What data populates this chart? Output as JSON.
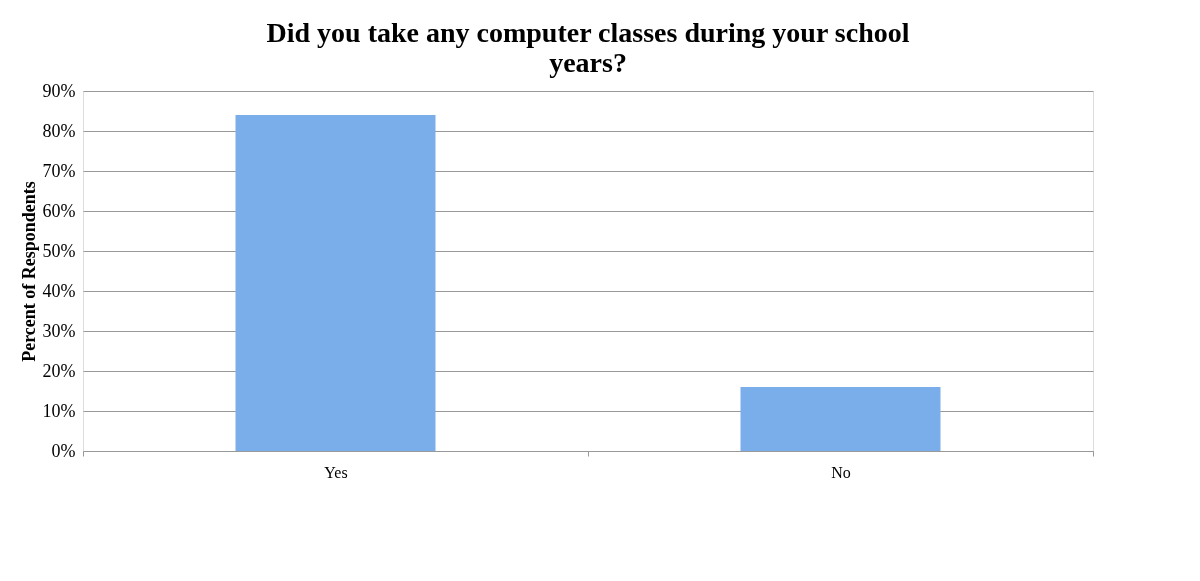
{
  "chart_data": {
    "type": "bar",
    "title": "Did you take any computer classes during your school years?",
    "ylabel": "Percent of Respondents",
    "categories": [
      "Yes",
      "No"
    ],
    "values": [
      84,
      16
    ],
    "color": "#7aaeea",
    "ylim": [
      0,
      90
    ],
    "yticks": [
      {
        "value": 0,
        "label": "0%"
      },
      {
        "value": 10,
        "label": "10%"
      },
      {
        "value": 20,
        "label": "20%"
      },
      {
        "value": 30,
        "label": "30%"
      },
      {
        "value": 40,
        "label": "40%"
      },
      {
        "value": 50,
        "label": "50%"
      },
      {
        "value": 60,
        "label": "60%"
      },
      {
        "value": 70,
        "label": "70%"
      },
      {
        "value": 80,
        "label": "80%"
      },
      {
        "value": 90,
        "label": "90%"
      }
    ],
    "grid": "y"
  }
}
